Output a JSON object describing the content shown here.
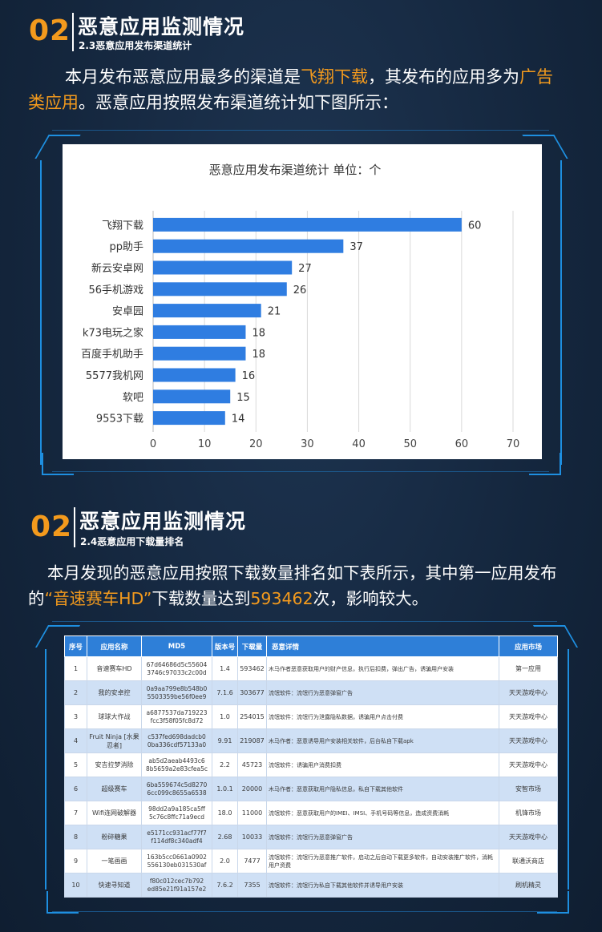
{
  "section1": {
    "num": "02",
    "title": "恶意应用监测情况",
    "subtitle": "2.3恶意应用发布渠道统计",
    "para_a": "本月发布恶意应用最多的渠道是",
    "para_hl1": "飞翔下载",
    "para_b": "，其发布的应用多为",
    "para_hl2": "广告",
    "para_hl3": "类应用",
    "para_c": "。恶意应用按照发布渠道统计如下图所示："
  },
  "chart_data": {
    "type": "bar",
    "orientation": "horizontal",
    "title": "恶意应用发布渠道统计    单位：个",
    "categories": [
      "飞翔下载",
      "pp助手",
      "新云安卓网",
      "56手机游戏",
      "安卓园",
      "k73电玩之家",
      "百度手机助手",
      "5577我机网",
      "软吧",
      "9553下载"
    ],
    "values": [
      60,
      37,
      27,
      26,
      21,
      18,
      18,
      16,
      15,
      14
    ],
    "xlim": [
      0,
      70
    ],
    "xticks": [
      "0",
      "10",
      "20",
      "30",
      "40",
      "50",
      "60",
      "70"
    ],
    "grid": true,
    "bar_color": "#2f7de1"
  },
  "section2": {
    "num": "02",
    "title": "恶意应用监测情况",
    "subtitle": "2.4恶意应用下载量排名",
    "para_a": "本月发现的恶意应用按照下载数量排名如下表所示，其中第一应用发布",
    "para_b": "的",
    "para_hl1": "“音速赛车HD”",
    "para_c": "下载数量达到",
    "para_hl2": "593462",
    "para_d": "次，影响较大。"
  },
  "table": {
    "headers": [
      "序号",
      "应用名称",
      "MD5",
      "版本号",
      "下载量",
      "恶意详情",
      "应用市场"
    ],
    "rows": [
      {
        "no": "1",
        "name": "音速赛车HD",
        "md5": "67d64686d5c55604 3746c97033c2c00d",
        "ver": "1.4",
        "dl": "593462",
        "desc": "木马作者恶意获取用户的财产信息，执行后扣费，弹出广告，诱骗用户安装",
        "market": "第一应用"
      },
      {
        "no": "2",
        "name": "我的安卓控",
        "md5": "0a9aa799e8b548b0 5503359be56f0ee9",
        "ver": "7.1.6",
        "dl": "303677",
        "desc": "流氓软件：流氓行为恶意弹窗广告",
        "market": "天天游戏中心"
      },
      {
        "no": "3",
        "name": "球球大作战",
        "md5": "a6877537da719223 fcc3f58f05fc8d72",
        "ver": "1.0",
        "dl": "254015",
        "desc": "流氓软件：流氓行为泄露隐私数据，诱骗用户点击付费",
        "market": "天天游戏中心"
      },
      {
        "no": "4",
        "name": "Fruit Ninja [水果忍者]",
        "md5": "c537fed698dadcb0 0ba336cdf57133a0",
        "ver": "9.91",
        "dl": "219087",
        "desc": "木马作者：恶意诱导用户安装相关软件，后台私自下载apk",
        "market": "天天游戏中心"
      },
      {
        "no": "5",
        "name": "安吉拉梦消除",
        "md5": "ab5d2aeab4493c6 8b5659a2e83cfea5c",
        "ver": "2.2",
        "dl": "45723",
        "desc": "流氓软件：诱骗用户消费扣费",
        "market": "天天游戏中心"
      },
      {
        "no": "6",
        "name": "超级赛车",
        "md5": "6ba559674c5d8270 6cc099c8655a6538",
        "ver": "1.0.1",
        "dl": "20000",
        "desc": "木马作者：恶意获取用户隐私信息，私自下载其他软件",
        "market": "安智市场"
      },
      {
        "no": "7",
        "name": "Wifi连网破解器",
        "md5": "98dd2a9a185ca5ff 5c76c8ffc71a9ecd",
        "ver": "18.0",
        "dl": "11000",
        "desc": "流氓软件：恶意获取用户的IMEI、IMSI、手机号码等信息，造成资费消耗",
        "market": "机锋市场"
      },
      {
        "no": "8",
        "name": "粉碎糖果",
        "md5": "e5171cc931acf77f7 f114df8c340adf4",
        "ver": "2.68",
        "dl": "10033",
        "desc": "流氓软件：流氓行为恶意弹窗广告",
        "market": "天天游戏中心"
      },
      {
        "no": "9",
        "name": "一笔画画",
        "md5": "163b5cc0661a0902 556130eb031530af",
        "ver": "2.0",
        "dl": "7477",
        "desc": "流氓软件：流氓行为恶意推广软件，启动之后自动下载更多软件，自动安装推广软件，消耗用户资费",
        "market": "联通沃商店"
      },
      {
        "no": "10",
        "name": "快速寻知道",
        "md5": "f80c012cec7b792 ed85e21f91a157e2",
        "ver": "7.6.2",
        "dl": "7355",
        "desc": "流氓软件：流氓行为私自下载其他软件并诱导用户安装",
        "market": "刷机精灵"
      }
    ]
  }
}
